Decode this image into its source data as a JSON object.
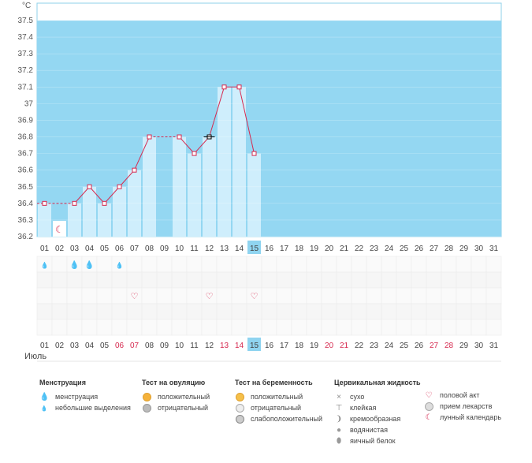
{
  "chart_data": {
    "type": "bar",
    "ylabel": "°C",
    "ylim": [
      36.2,
      37.6
    ],
    "yticks": [
      "37.5",
      "37.4",
      "37.3",
      "37.2",
      "37.1",
      "37",
      "36.9",
      "36.8",
      "36.7",
      "36.6",
      "36.5",
      "36.4",
      "36.3",
      "36.2"
    ],
    "ytick_values": [
      37.5,
      37.4,
      37.3,
      37.2,
      37.1,
      37.0,
      36.9,
      36.8,
      36.7,
      36.6,
      36.5,
      36.4,
      36.3,
      36.2
    ],
    "days": [
      "01",
      "02",
      "03",
      "04",
      "05",
      "06",
      "07",
      "08",
      "09",
      "10",
      "11",
      "12",
      "13",
      "14",
      "15",
      "16",
      "17",
      "18",
      "19",
      "20",
      "21",
      "22",
      "23",
      "24",
      "25",
      "26",
      "27",
      "28",
      "29",
      "30",
      "31"
    ],
    "today_index": 14,
    "temperature": [
      36.4,
      null,
      36.4,
      36.5,
      36.4,
      36.5,
      36.6,
      36.8,
      null,
      36.8,
      36.7,
      36.8,
      37.1,
      37.1,
      36.7,
      null,
      null,
      null,
      null,
      null,
      null,
      null,
      null,
      null,
      null,
      null,
      null,
      null,
      null,
      null,
      null
    ],
    "grid": true
  },
  "month": "Июль",
  "weekend_days_bottom": [
    "06",
    "07",
    "13",
    "14",
    "20",
    "21",
    "27",
    "28"
  ],
  "markers": {
    "moon": [
      1
    ],
    "menstruation_small": [
      0,
      5
    ],
    "menstruation": [
      2,
      3
    ],
    "intercourse": [
      6,
      11,
      14
    ]
  },
  "colors": {
    "background": "#94d7f2",
    "bar": "#cfeefc",
    "line": "#d6294f",
    "today": "#8fd4f0"
  },
  "legend": {
    "menstruation": {
      "title": "Менструация",
      "items": [
        {
          "icon": "blood-drops-icon",
          "label": "менструация"
        },
        {
          "icon": "blood-drop-small-icon",
          "label": "небольшие выделения"
        }
      ]
    },
    "ovulation": {
      "title": "Тест на овуляцию",
      "items": [
        {
          "icon": "test-positive-icon",
          "label": "положительный"
        },
        {
          "icon": "test-negative-icon",
          "label": "отрицательный"
        }
      ]
    },
    "pregnancy": {
      "title": "Тест на беременность",
      "items": [
        {
          "icon": "test-positive-icon",
          "label": "положительный"
        },
        {
          "icon": "test-negative-icon",
          "label": "отрицательный"
        },
        {
          "icon": "test-weak-icon",
          "label": "слабоположительный"
        }
      ]
    },
    "cervical": {
      "title": "Цервикальная жидкость",
      "items": [
        {
          "icon": "dry-icon",
          "label": "сухо"
        },
        {
          "icon": "sticky-icon",
          "label": "клейкая"
        },
        {
          "icon": "creamy-icon",
          "label": "кремообразная"
        },
        {
          "icon": "watery-icon",
          "label": "водянистая"
        },
        {
          "icon": "egg-white-icon",
          "label": "яичный белок"
        }
      ]
    },
    "other": {
      "items": [
        {
          "icon": "heart-icon",
          "label": "половой акт"
        },
        {
          "icon": "pill-icon",
          "label": "прием лекарств"
        },
        {
          "icon": "moon-icon",
          "label": "лунный календарь"
        }
      ]
    }
  }
}
